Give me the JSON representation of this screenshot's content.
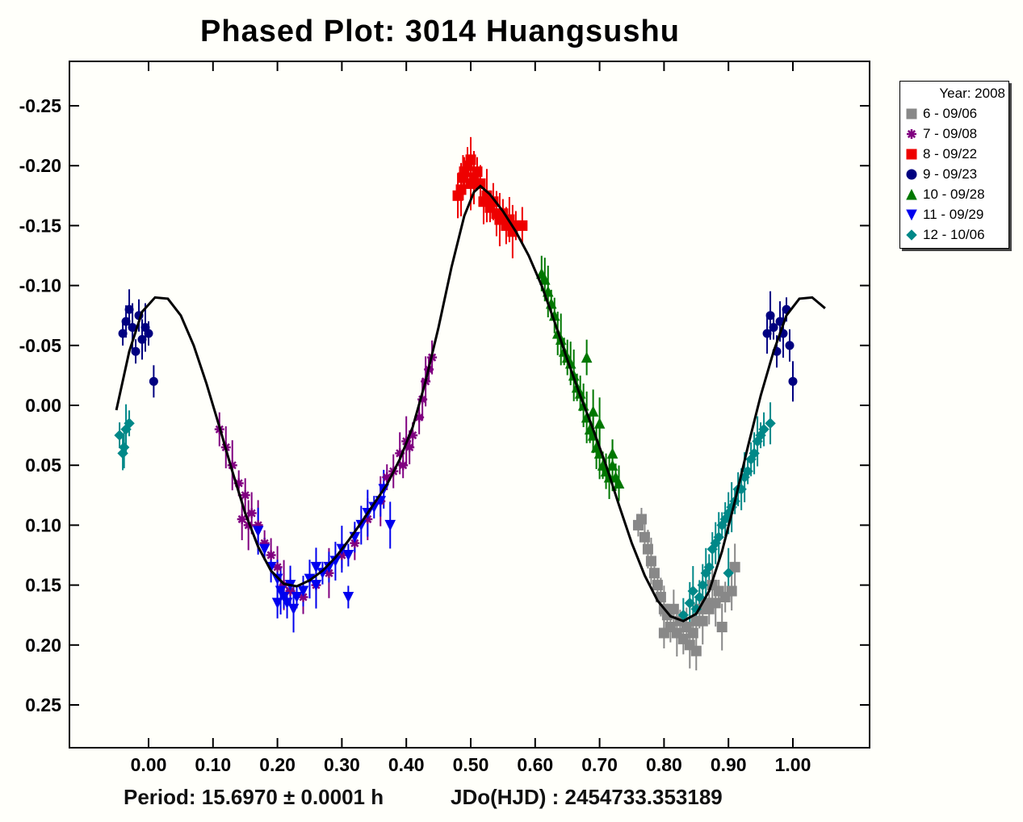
{
  "chart_data": {
    "type": "scatter",
    "title": "Phased Plot: 3014 Huangsushu",
    "xlabel": "",
    "ylabel": "",
    "xlim": [
      -0.07,
      1.12
    ],
    "ylim": [
      0.285,
      -0.285
    ],
    "y_inverted": true,
    "x_ticks": [
      "0.00",
      "0.10",
      "0.20",
      "0.30",
      "0.40",
      "0.50",
      "0.60",
      "0.70",
      "0.80",
      "0.90",
      "1.00"
    ],
    "y_ticks": [
      "-0.25",
      "-0.20",
      "-0.15",
      "-0.10",
      "-0.05",
      "0.00",
      "0.05",
      "0.10",
      "0.15",
      "0.20",
      "0.25"
    ],
    "grid": false,
    "legend_position": "right",
    "legend_title": "Year: 2008",
    "fit_curve": {
      "color": "#000000",
      "points": [
        [
          -0.05,
          0.004
        ],
        [
          -0.03,
          -0.045
        ],
        [
          -0.01,
          -0.078
        ],
        [
          0.01,
          -0.09
        ],
        [
          0.03,
          -0.089
        ],
        [
          0.05,
          -0.075
        ],
        [
          0.07,
          -0.05
        ],
        [
          0.09,
          -0.018
        ],
        [
          0.11,
          0.018
        ],
        [
          0.13,
          0.055
        ],
        [
          0.15,
          0.09
        ],
        [
          0.17,
          0.118
        ],
        [
          0.19,
          0.138
        ],
        [
          0.21,
          0.149
        ],
        [
          0.23,
          0.151
        ],
        [
          0.25,
          0.146
        ],
        [
          0.27,
          0.138
        ],
        [
          0.29,
          0.127
        ],
        [
          0.31,
          0.113
        ],
        [
          0.33,
          0.098
        ],
        [
          0.35,
          0.082
        ],
        [
          0.37,
          0.066
        ],
        [
          0.39,
          0.045
        ],
        [
          0.41,
          0.018
        ],
        [
          0.43,
          -0.02
        ],
        [
          0.45,
          -0.065
        ],
        [
          0.47,
          -0.115
        ],
        [
          0.49,
          -0.158
        ],
        [
          0.505,
          -0.178
        ],
        [
          0.515,
          -0.183
        ],
        [
          0.53,
          -0.176
        ],
        [
          0.55,
          -0.162
        ],
        [
          0.57,
          -0.145
        ],
        [
          0.59,
          -0.125
        ],
        [
          0.61,
          -0.1
        ],
        [
          0.63,
          -0.07
        ],
        [
          0.65,
          -0.038
        ],
        [
          0.67,
          -0.008
        ],
        [
          0.69,
          0.02
        ],
        [
          0.71,
          0.05
        ],
        [
          0.73,
          0.083
        ],
        [
          0.75,
          0.115
        ],
        [
          0.77,
          0.142
        ],
        [
          0.79,
          0.163
        ],
        [
          0.81,
          0.176
        ],
        [
          0.83,
          0.18
        ],
        [
          0.85,
          0.174
        ],
        [
          0.87,
          0.155
        ],
        [
          0.89,
          0.122
        ],
        [
          0.91,
          0.08
        ],
        [
          0.93,
          0.035
        ],
        [
          0.95,
          -0.008
        ],
        [
          0.97,
          -0.045
        ],
        [
          0.99,
          -0.075
        ],
        [
          1.01,
          -0.089
        ],
        [
          1.03,
          -0.09
        ],
        [
          1.05,
          -0.081
        ]
      ]
    },
    "series": [
      {
        "name": "6 - 09/06",
        "color": "#888888",
        "marker": "square",
        "points": [
          [
            0.765,
            0.095
          ],
          [
            0.77,
            0.11
          ],
          [
            0.775,
            0.12
          ],
          [
            0.78,
            0.13
          ],
          [
            0.785,
            0.14
          ],
          [
            0.79,
            0.15
          ],
          [
            0.795,
            0.16
          ],
          [
            0.8,
            0.17
          ],
          [
            0.805,
            0.175
          ],
          [
            0.81,
            0.185
          ],
          [
            0.815,
            0.17
          ],
          [
            0.82,
            0.19
          ],
          [
            0.825,
            0.18
          ],
          [
            0.83,
            0.195
          ],
          [
            0.835,
            0.185
          ],
          [
            0.84,
            0.2
          ],
          [
            0.845,
            0.19
          ],
          [
            0.85,
            0.18
          ],
          [
            0.855,
            0.17
          ],
          [
            0.86,
            0.18
          ],
          [
            0.865,
            0.165
          ],
          [
            0.87,
            0.17
          ],
          [
            0.875,
            0.15
          ],
          [
            0.88,
            0.165
          ],
          [
            0.885,
            0.155
          ],
          [
            0.895,
            0.16
          ],
          [
            0.905,
            0.155
          ],
          [
            0.91,
            0.135
          ],
          [
            0.76,
            0.1
          ],
          [
            0.8,
            0.19
          ],
          [
            0.85,
            0.205
          ],
          [
            0.89,
            0.185
          ]
        ]
      },
      {
        "name": "7 - 09/08",
        "color": "#800080",
        "marker": "asterisk",
        "points": [
          [
            0.11,
            0.02
          ],
          [
            0.12,
            0.035
          ],
          [
            0.13,
            0.05
          ],
          [
            0.14,
            0.065
          ],
          [
            0.15,
            0.075
          ],
          [
            0.16,
            0.09
          ],
          [
            0.17,
            0.1
          ],
          [
            0.18,
            0.115
          ],
          [
            0.19,
            0.125
          ],
          [
            0.2,
            0.135
          ],
          [
            0.21,
            0.15
          ],
          [
            0.22,
            0.155
          ],
          [
            0.24,
            0.16
          ],
          [
            0.26,
            0.15
          ],
          [
            0.28,
            0.14
          ],
          [
            0.3,
            0.125
          ],
          [
            0.32,
            0.115
          ],
          [
            0.34,
            0.095
          ],
          [
            0.36,
            0.08
          ],
          [
            0.37,
            0.06
          ],
          [
            0.38,
            0.055
          ],
          [
            0.39,
            0.04
          ],
          [
            0.4,
            0.03
          ],
          [
            0.41,
            0.025
          ],
          [
            0.42,
            0.01
          ],
          [
            0.425,
            -0.005
          ],
          [
            0.43,
            -0.02
          ],
          [
            0.435,
            -0.03
          ],
          [
            0.44,
            -0.04
          ],
          [
            0.145,
            0.095
          ],
          [
            0.155,
            0.1
          ],
          [
            0.395,
            0.05
          ],
          [
            0.405,
            0.035
          ]
        ]
      },
      {
        "name": "8 - 09/22",
        "color": "#ee0000",
        "marker": "square",
        "points": [
          [
            0.48,
            -0.175
          ],
          [
            0.485,
            -0.18
          ],
          [
            0.49,
            -0.195
          ],
          [
            0.495,
            -0.2
          ],
          [
            0.5,
            -0.205
          ],
          [
            0.505,
            -0.19
          ],
          [
            0.51,
            -0.195
          ],
          [
            0.515,
            -0.185
          ],
          [
            0.52,
            -0.17
          ],
          [
            0.525,
            -0.175
          ],
          [
            0.53,
            -0.165
          ],
          [
            0.535,
            -0.17
          ],
          [
            0.54,
            -0.16
          ],
          [
            0.545,
            -0.155
          ],
          [
            0.55,
            -0.16
          ],
          [
            0.555,
            -0.15
          ],
          [
            0.56,
            -0.155
          ],
          [
            0.565,
            -0.145
          ],
          [
            0.57,
            -0.15
          ],
          [
            0.58,
            -0.15
          ],
          [
            0.488,
            -0.19
          ],
          [
            0.5,
            -0.185
          ]
        ]
      },
      {
        "name": "9 - 09/23",
        "color": "#000080",
        "marker": "circle",
        "points": [
          [
            -0.04,
            -0.06
          ],
          [
            -0.035,
            -0.07
          ],
          [
            -0.03,
            -0.08
          ],
          [
            -0.025,
            -0.065
          ],
          [
            -0.02,
            -0.045
          ],
          [
            -0.015,
            -0.075
          ],
          [
            -0.01,
            -0.055
          ],
          [
            -0.005,
            -0.065
          ],
          [
            0.0,
            -0.06
          ],
          [
            0.008,
            -0.02
          ],
          [
            0.96,
            -0.06
          ],
          [
            0.965,
            -0.075
          ],
          [
            0.97,
            -0.065
          ],
          [
            0.975,
            -0.045
          ],
          [
            0.98,
            -0.07
          ],
          [
            0.985,
            -0.06
          ],
          [
            0.99,
            -0.08
          ],
          [
            0.995,
            -0.05
          ],
          [
            1.0,
            -0.02
          ]
        ]
      },
      {
        "name": "10 - 09/28",
        "color": "#007700",
        "marker": "triangle",
        "points": [
          [
            0.61,
            -0.11
          ],
          [
            0.615,
            -0.105
          ],
          [
            0.62,
            -0.095
          ],
          [
            0.625,
            -0.085
          ],
          [
            0.63,
            -0.075
          ],
          [
            0.635,
            -0.06
          ],
          [
            0.64,
            -0.055
          ],
          [
            0.645,
            -0.045
          ],
          [
            0.65,
            -0.04
          ],
          [
            0.655,
            -0.035
          ],
          [
            0.66,
            -0.025
          ],
          [
            0.665,
            -0.015
          ],
          [
            0.67,
            -0.01
          ],
          [
            0.675,
            0.0
          ],
          [
            0.68,
            0.01
          ],
          [
            0.685,
            0.02
          ],
          [
            0.69,
            0.025
          ],
          [
            0.695,
            0.035
          ],
          [
            0.7,
            0.04
          ],
          [
            0.705,
            0.05
          ],
          [
            0.71,
            0.055
          ],
          [
            0.715,
            0.06
          ],
          [
            0.72,
            0.05
          ],
          [
            0.725,
            0.06
          ],
          [
            0.73,
            0.065
          ],
          [
            0.69,
            0.005
          ],
          [
            0.7,
            0.015
          ],
          [
            0.72,
            0.04
          ],
          [
            0.68,
            -0.04
          ]
        ]
      },
      {
        "name": "11 - 09/29",
        "color": "#0000ee",
        "marker": "triangle-down",
        "points": [
          [
            0.17,
            0.105
          ],
          [
            0.18,
            0.12
          ],
          [
            0.19,
            0.135
          ],
          [
            0.2,
            0.145
          ],
          [
            0.205,
            0.155
          ],
          [
            0.21,
            0.16
          ],
          [
            0.215,
            0.165
          ],
          [
            0.22,
            0.15
          ],
          [
            0.225,
            0.17
          ],
          [
            0.23,
            0.16
          ],
          [
            0.24,
            0.155
          ],
          [
            0.25,
            0.145
          ],
          [
            0.26,
            0.15
          ],
          [
            0.27,
            0.14
          ],
          [
            0.28,
            0.135
          ],
          [
            0.29,
            0.13
          ],
          [
            0.3,
            0.12
          ],
          [
            0.31,
            0.125
          ],
          [
            0.32,
            0.11
          ],
          [
            0.33,
            0.1
          ],
          [
            0.34,
            0.09
          ],
          [
            0.35,
            0.085
          ],
          [
            0.36,
            0.08
          ],
          [
            0.365,
            0.07
          ],
          [
            0.375,
            0.1
          ],
          [
            0.31,
            0.16
          ],
          [
            0.2,
            0.165
          ],
          [
            0.26,
            0.135
          ]
        ]
      },
      {
        "name": "12 - 10/06",
        "color": "#008888",
        "marker": "diamond",
        "points": [
          [
            -0.045,
            0.025
          ],
          [
            -0.04,
            0.04
          ],
          [
            -0.038,
            0.035
          ],
          [
            -0.035,
            0.02
          ],
          [
            -0.03,
            0.015
          ],
          [
            0.83,
            0.175
          ],
          [
            0.84,
            0.165
          ],
          [
            0.845,
            0.155
          ],
          [
            0.85,
            0.17
          ],
          [
            0.855,
            0.16
          ],
          [
            0.86,
            0.15
          ],
          [
            0.865,
            0.14
          ],
          [
            0.87,
            0.135
          ],
          [
            0.875,
            0.12
          ],
          [
            0.88,
            0.115
          ],
          [
            0.885,
            0.11
          ],
          [
            0.89,
            0.1
          ],
          [
            0.895,
            0.095
          ],
          [
            0.9,
            0.09
          ],
          [
            0.905,
            0.085
          ],
          [
            0.91,
            0.08
          ],
          [
            0.915,
            0.07
          ],
          [
            0.92,
            0.07
          ],
          [
            0.925,
            0.06
          ],
          [
            0.93,
            0.055
          ],
          [
            0.935,
            0.045
          ],
          [
            0.94,
            0.04
          ],
          [
            0.945,
            0.03
          ],
          [
            0.95,
            0.025
          ],
          [
            0.955,
            0.02
          ],
          [
            0.965,
            0.015
          ],
          [
            0.9,
            0.14
          ]
        ]
      }
    ]
  },
  "footer": {
    "period_text": "Period: 15.6970 ± 0.0001 h",
    "jd_text": "JDo(HJD) : 2454733.353189"
  }
}
